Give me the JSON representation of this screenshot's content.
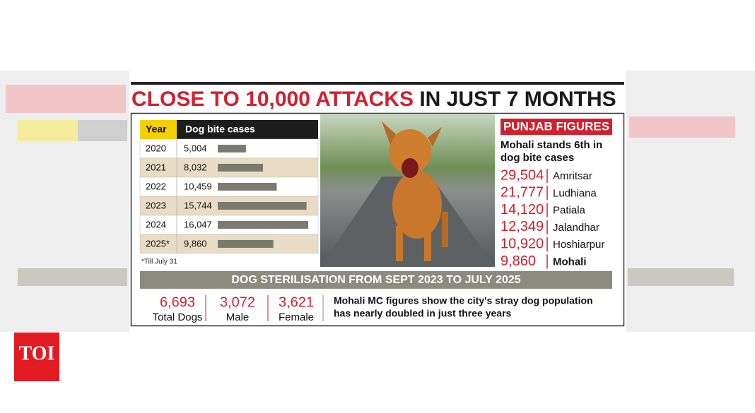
{
  "logo": "TOI",
  "title": {
    "highlight": "CLOSE TO 10,000 ATTACKS",
    "rest": "IN JUST 7 MONTHS"
  },
  "table": {
    "headers": [
      "Year",
      "Dog bite cases"
    ],
    "rows": [
      {
        "year": "2020",
        "value": 5004,
        "value_label": "5,004"
      },
      {
        "year": "2021",
        "value": 8032,
        "value_label": "8,032"
      },
      {
        "year": "2022",
        "value": 10459,
        "value_label": "10,459"
      },
      {
        "year": "2023",
        "value": 15744,
        "value_label": "15,744"
      },
      {
        "year": "2024",
        "value": 16047,
        "value_label": "16,047"
      },
      {
        "year": "2025*",
        "value": 9860,
        "value_label": "9,860"
      }
    ],
    "note": "*Till July 31"
  },
  "punjab": {
    "title": "PUNJAB FIGURES",
    "subtitle": [
      "Mohali stands 6th in",
      "dog bite cases"
    ],
    "rows": [
      {
        "value": "29,504",
        "city": "Amritsar"
      },
      {
        "value": "21,777",
        "city": "Ludhiana"
      },
      {
        "value": "14,120",
        "city": "Patiala"
      },
      {
        "value": "12,349",
        "city": "Jalandhar"
      },
      {
        "value": "10,920",
        "city": "Hoshiarpur"
      },
      {
        "value": "9,860",
        "city": "Mohali"
      }
    ]
  },
  "sterilisation": {
    "title": "DOG STERILISATION FROM SEPT 2023 TO JULY 2025",
    "stats": [
      {
        "value": "6,693",
        "label": "Total Dogs"
      },
      {
        "value": "3,072",
        "label": "Male"
      },
      {
        "value": "3,621",
        "label": "Female"
      }
    ],
    "note": [
      "Mohali MC figures show the city's stray dog population",
      "has nearly doubled in just three years"
    ]
  }
}
